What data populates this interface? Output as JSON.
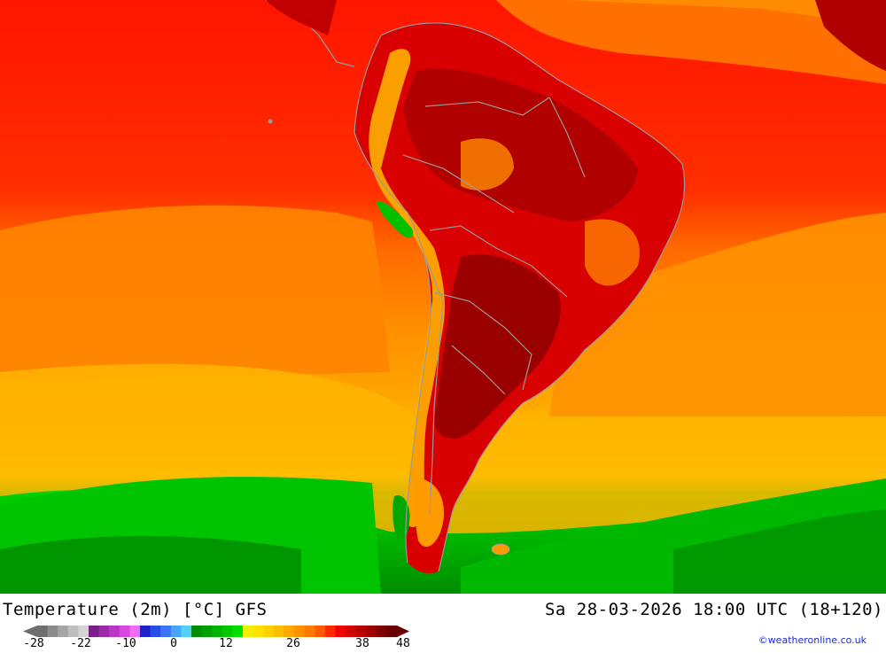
{
  "header": {
    "title": "Temperature (2m) [°C] GFS",
    "datetime": "Sa 28-03-2026 18:00 UTC (18+120)"
  },
  "legend": {
    "tick_labels": [
      "-28",
      "-22",
      "-10",
      "0",
      "12",
      "26",
      "38",
      "48"
    ],
    "colors": [
      "#6e6e6e",
      "#8c8c8c",
      "#a5a5a5",
      "#bebebe",
      "#d4d4d4",
      "#7a1f8a",
      "#9b2aa8",
      "#bb35c6",
      "#d946e0",
      "#ef6cf4",
      "#1a22c8",
      "#2a4ce6",
      "#3a76f4",
      "#4aa2fa",
      "#50d2fb",
      "#008c00",
      "#00a000",
      "#00b400",
      "#00c800",
      "#00e000",
      "#f0f000",
      "#ffe200",
      "#ffd000",
      "#ffbd00",
      "#ffa800",
      "#ff9000",
      "#ff7a00",
      "#ff5a00",
      "#ff2a00",
      "#f00000",
      "#d40000",
      "#b80000",
      "#9c0000",
      "#800000",
      "#660000"
    ]
  },
  "credit": "©weatheronline.co.uk",
  "palette": {
    "ocean_north": "#ff1f00",
    "ocean_mid": "#ff7a00",
    "ocean_south": "#ffb000",
    "cold_band": "#00c800",
    "hot_core": "#a00000",
    "border": "#9a9a9a"
  }
}
